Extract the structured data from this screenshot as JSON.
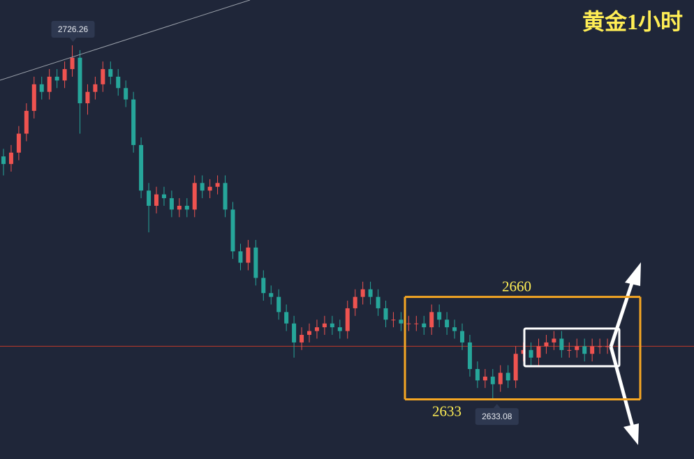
{
  "chart_data": {
    "type": "candlestick",
    "title": "黄金1小时",
    "up_color": "#ef5350",
    "down_color": "#26a69a",
    "last_price_line_color": "#c0392b",
    "ylim": [
      2617.3,
      2738.2
    ],
    "open": [
      2697,
      2695,
      2698,
      2703,
      2709,
      2716,
      2714,
      2718,
      2717,
      2720,
      2723,
      2711,
      2714,
      2716,
      2720,
      2718,
      2715,
      2712,
      2700,
      2688,
      2684,
      2687,
      2686,
      2683,
      2684,
      2683,
      2690,
      2688,
      2689,
      2690,
      2683,
      2672,
      2669,
      2673,
      2665,
      2661,
      2660,
      2656,
      2653,
      2648,
      2650,
      2651,
      2652,
      2653,
      2652,
      2651,
      2657,
      2660,
      2662,
      2660,
      2657,
      2654,
      2654,
      2653,
      2653,
      2653,
      2652,
      2656,
      2654,
      2652,
      2651,
      2648,
      2641,
      2638,
      2639,
      2637,
      2640,
      2638,
      2645,
      2646,
      2644,
      2647,
      2648,
      2649,
      2646,
      2646,
      2647,
      2645,
      2647,
      2647
    ],
    "high": [
      2699,
      2700,
      2705,
      2711,
      2718,
      2718,
      2720,
      2720,
      2722,
      2726.26,
      2725,
      2716,
      2718,
      2722,
      2722,
      2720,
      2717,
      2714,
      2702,
      2690,
      2689,
      2689,
      2688,
      2686,
      2686,
      2692,
      2692,
      2691,
      2692,
      2692,
      2685,
      2674,
      2675,
      2675,
      2667,
      2663,
      2662,
      2658,
      2655,
      2652,
      2653,
      2654,
      2655,
      2655,
      2654,
      2659,
      2662,
      2664,
      2664,
      2662,
      2659,
      2656,
      2656,
      2655,
      2655,
      2655,
      2658,
      2658,
      2656,
      2654,
      2653,
      2650,
      2643,
      2641,
      2641,
      2642,
      2642,
      2647,
      2648,
      2648,
      2649,
      2650,
      2651,
      2651,
      2648,
      2649,
      2649,
      2649,
      2649,
      2649
    ],
    "low": [
      2692,
      2693,
      2696,
      2701,
      2707,
      2712,
      2712,
      2715,
      2715,
      2718,
      2703,
      2708,
      2712,
      2714,
      2716,
      2713,
      2710,
      2698,
      2686,
      2677,
      2682,
      2684,
      2681,
      2681,
      2681,
      2681,
      2686,
      2686,
      2687,
      2681,
      2670,
      2667,
      2667,
      2663,
      2659,
      2658,
      2654,
      2651,
      2644,
      2646,
      2648,
      2649,
      2650,
      2650,
      2649,
      2649,
      2655,
      2658,
      2658,
      2655,
      2652,
      2652,
      2651,
      2651,
      2651,
      2650,
      2650,
      2652,
      2650,
      2649,
      2646,
      2639,
      2636,
      2636,
      2633.08,
      2635,
      2636,
      2636,
      2643,
      2642,
      2642,
      2645,
      2646,
      2644,
      2644,
      2644,
      2643,
      2643,
      2645,
      2645
    ],
    "close": [
      2695,
      2698,
      2703,
      2709,
      2716,
      2714,
      2718,
      2717,
      2720,
      2723,
      2711,
      2714,
      2716,
      2720,
      2718,
      2715,
      2712,
      2700,
      2688,
      2684,
      2687,
      2686,
      2683,
      2684,
      2683,
      2690,
      2688,
      2689,
      2690,
      2683,
      2672,
      2669,
      2673,
      2665,
      2661,
      2660,
      2656,
      2653,
      2648,
      2650,
      2651,
      2652,
      2653,
      2652,
      2651,
      2657,
      2660,
      2662,
      2660,
      2657,
      2654,
      2654,
      2653,
      2653,
      2653,
      2652,
      2656,
      2654,
      2652,
      2651,
      2648,
      2641,
      2638,
      2639,
      2637,
      2640,
      2638,
      2645,
      2646,
      2644,
      2647,
      2648,
      2649,
      2646,
      2646,
      2647,
      2645,
      2647,
      2647,
      2647
    ],
    "levels": [
      2660,
      2633
    ]
  }
}
